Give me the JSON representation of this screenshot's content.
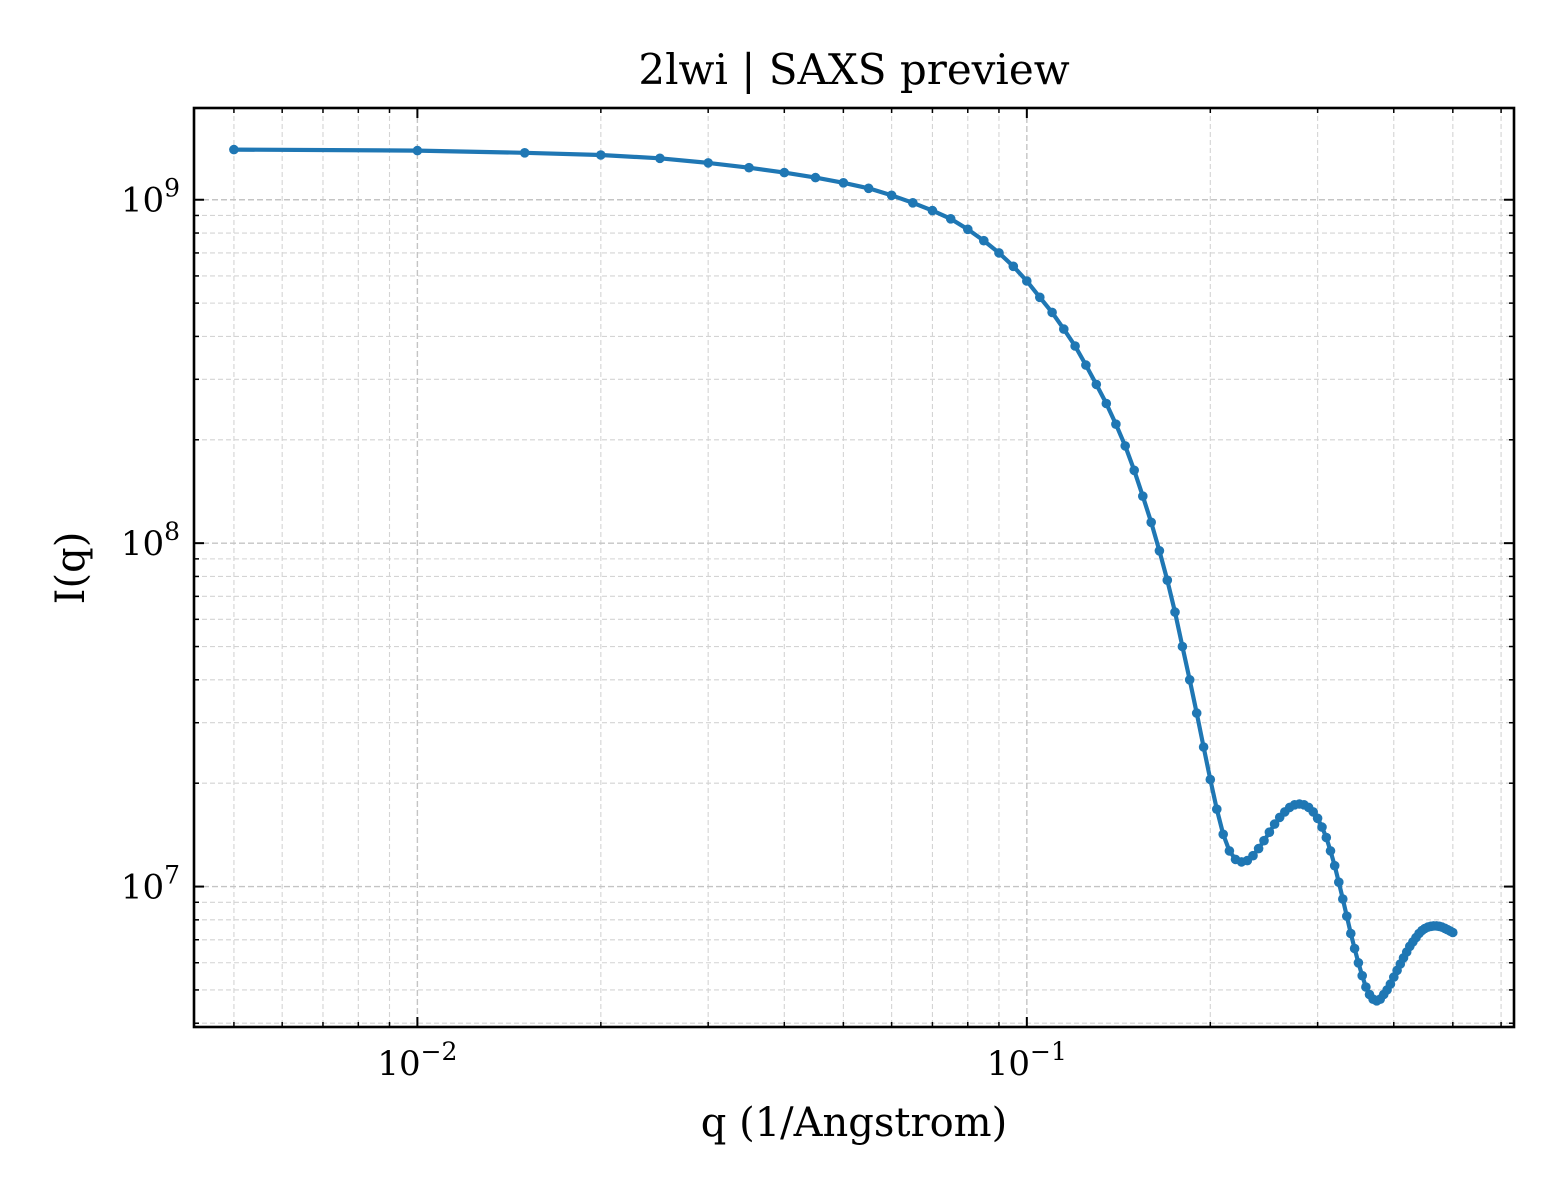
{
  "chart_data": {
    "type": "line",
    "title": "2lwi | SAXS preview",
    "xlabel": "q (1/Angstrom)",
    "ylabel": "I(q)",
    "xscale": "log",
    "yscale": "log",
    "xlim": [
      0.0043,
      0.63
    ],
    "ylim": [
      3900000,
      1850000000
    ],
    "grid": true,
    "color": "#1f77b4",
    "x_ticks": [
      {
        "value": 0.01,
        "base": "10",
        "exp": "−2"
      },
      {
        "value": 0.1,
        "base": "10",
        "exp": "−1"
      }
    ],
    "y_ticks": [
      {
        "value": 10000000,
        "base": "10",
        "exp": "7"
      },
      {
        "value": 100000000,
        "base": "10",
        "exp": "8"
      },
      {
        "value": 1000000000,
        "base": "10",
        "exp": "9"
      }
    ],
    "series": [
      {
        "x": [
          0.005,
          0.01,
          0.015,
          0.02,
          0.025,
          0.03,
          0.035,
          0.04,
          0.045,
          0.05,
          0.055,
          0.06,
          0.065,
          0.07,
          0.075,
          0.08,
          0.085,
          0.09,
          0.095,
          0.1,
          0.105,
          0.11,
          0.115,
          0.12,
          0.125,
          0.13,
          0.135,
          0.14,
          0.145,
          0.15,
          0.155,
          0.16,
          0.165,
          0.17,
          0.175,
          0.18,
          0.185,
          0.19,
          0.195,
          0.2,
          0.205,
          0.21,
          0.215,
          0.22,
          0.225,
          0.23,
          0.235,
          0.24,
          0.245,
          0.25,
          0.255,
          0.26,
          0.265,
          0.27,
          0.275,
          0.28,
          0.285,
          0.29,
          0.295,
          0.3,
          0.305,
          0.31,
          0.315,
          0.32,
          0.325,
          0.33,
          0.335,
          0.34,
          0.345,
          0.35,
          0.355,
          0.36,
          0.365,
          0.37,
          0.375,
          0.38,
          0.385,
          0.39,
          0.395,
          0.4,
          0.405,
          0.41,
          0.415,
          0.42,
          0.425,
          0.43,
          0.435,
          0.44,
          0.445,
          0.45,
          0.455,
          0.46,
          0.465,
          0.47,
          0.475,
          0.48,
          0.485,
          0.49,
          0.495,
          0.5
        ],
        "y": [
          1400000000,
          1390000000,
          1370000000,
          1350000000,
          1320000000,
          1280000000,
          1240000000,
          1200000000,
          1160000000,
          1120000000,
          1080000000,
          1030000000,
          980000000,
          930000000,
          880000000,
          820000000,
          760000000,
          700000000,
          640000000,
          580000000,
          520000000,
          470000000,
          420000000,
          375000000,
          330000000,
          290000000,
          255000000,
          222000000,
          192000000,
          163000000,
          137000000,
          115000000,
          95000000,
          78000000,
          63000000,
          50000000,
          40000000,
          32000000,
          25500000,
          20500000,
          16800000,
          14200000,
          12700000,
          12000000,
          11800000,
          11900000,
          12300000,
          12900000,
          13600000,
          14400000,
          15200000,
          15900000,
          16500000,
          17000000,
          17300000,
          17400000,
          17300000,
          17000000,
          16500000,
          15800000,
          14900000,
          13900000,
          12700000,
          11500000,
          10300000,
          9200000,
          8200000,
          7300000,
          6600000,
          6000000,
          5500000,
          5100000,
          4850000,
          4700000,
          4650000,
          4700000,
          4850000,
          5000000,
          5200000,
          5450000,
          5700000,
          5950000,
          6200000,
          6450000,
          6700000,
          6900000,
          7100000,
          7300000,
          7450000,
          7550000,
          7620000,
          7660000,
          7680000,
          7680000,
          7660000,
          7620000,
          7560000,
          7490000,
          7420000,
          7350000
        ]
      }
    ]
  }
}
